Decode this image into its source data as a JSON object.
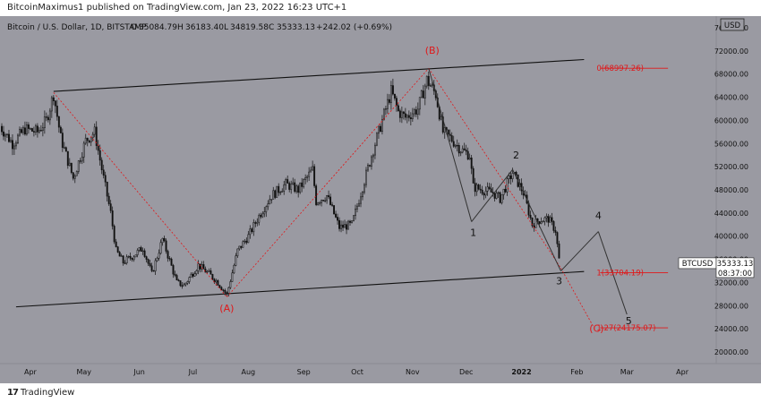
{
  "header": {
    "published_text": "BitcoinMaximus1 published on TradingView.com, Jan 23, 2022 16:23 UTC+1"
  },
  "footer": {
    "logo_mark": "17",
    "brand": "TradingView"
  },
  "colors": {
    "plot_bg": "#9a9aa2",
    "axis_bg": "#9a9aa2",
    "candle": "#111111",
    "wave_line": "#333333",
    "red": "#e0181a",
    "price_box": "#ffffff"
  },
  "chart_data": {
    "type": "candlestick",
    "symbol_line": {
      "name": "Bitcoin / U.S. Dollar, 1D, BITSTAMP",
      "o_label": "O",
      "o_value": "35084.79",
      "h_label": "H",
      "h_value": "36183.40",
      "l_label": "L",
      "l_value": "34819.58",
      "c_label": "C",
      "c_value": "35333.13",
      "change": "+242.02 (+0.69%)"
    },
    "currency": "USD",
    "price_axis_labels": [
      "76000.00",
      "72000.00",
      "68000.00",
      "64000.00",
      "60000.00",
      "56000.00",
      "52000.00",
      "48000.00",
      "44000.00",
      "40000.00",
      "36000.00",
      "32000.00",
      "28000.00",
      "24000.00",
      "20000.00"
    ],
    "price_ticks": [
      76000,
      72000,
      68000,
      64000,
      60000,
      56000,
      52000,
      48000,
      44000,
      40000,
      36000,
      32000,
      28000,
      24000,
      20000
    ],
    "ylim": [
      18000,
      78000
    ],
    "time_axis_labels": [
      "Apr",
      "May",
      "Jun",
      "Jul",
      "Aug",
      "Sep",
      "Oct",
      "Nov",
      "Dec",
      "2022",
      "Feb",
      "Mar",
      "Apr"
    ],
    "time_ticks": [
      "2021-04-01",
      "2021-05-01",
      "2021-06-01",
      "2021-07-01",
      "2021-08-01",
      "2021-09-01",
      "2021-10-01",
      "2021-11-01",
      "2021-12-01",
      "2022-01-01",
      "2022-02-01",
      "2022-03-01",
      "2022-04-01"
    ],
    "xlim": [
      "2021-03-15",
      "2022-04-20"
    ],
    "last_price": {
      "symbol": "BTCUSD",
      "price": "35333.13",
      "countdown": "08:37:00",
      "value": 35333.13
    },
    "price_path": [
      [
        "2021-03-15",
        59000
      ],
      [
        "2021-03-22",
        56000
      ],
      [
        "2021-03-29",
        58500
      ],
      [
        "2021-04-05",
        58000
      ],
      [
        "2021-04-10",
        60000
      ],
      [
        "2021-04-14",
        64500
      ],
      [
        "2021-04-18",
        57000
      ],
      [
        "2021-04-25",
        50000
      ],
      [
        "2021-05-02",
        56500
      ],
      [
        "2021-05-07",
        58000
      ],
      [
        "2021-05-12",
        50000
      ],
      [
        "2021-05-16",
        44000
      ],
      [
        "2021-05-19",
        37500
      ],
      [
        "2021-05-23",
        35500
      ],
      [
        "2021-05-28",
        36500
      ],
      [
        "2021-06-03",
        38000
      ],
      [
        "2021-06-08",
        33500
      ],
      [
        "2021-06-14",
        39500
      ],
      [
        "2021-06-22",
        32000
      ],
      [
        "2021-06-26",
        31500
      ],
      [
        "2021-07-04",
        35000
      ],
      [
        "2021-07-10",
        33500
      ],
      [
        "2021-07-15",
        32000
      ],
      [
        "2021-07-20",
        29900
      ],
      [
        "2021-07-26",
        37500
      ],
      [
        "2021-08-01",
        40000
      ],
      [
        "2021-08-07",
        43500
      ],
      [
        "2021-08-14",
        47000
      ],
      [
        "2021-08-22",
        49000
      ],
      [
        "2021-08-29",
        48000
      ],
      [
        "2021-09-06",
        51500
      ],
      [
        "2021-09-08",
        46000
      ],
      [
        "2021-09-14",
        47000
      ],
      [
        "2021-09-21",
        41500
      ],
      [
        "2021-09-28",
        42000
      ],
      [
        "2021-10-04",
        48500
      ],
      [
        "2021-10-10",
        55000
      ],
      [
        "2021-10-16",
        61000
      ],
      [
        "2021-10-20",
        65000
      ],
      [
        "2021-10-24",
        61500
      ],
      [
        "2021-10-28",
        60500
      ],
      [
        "2021-11-04",
        62000
      ],
      [
        "2021-11-09",
        67000
      ],
      [
        "2021-11-14",
        64500
      ],
      [
        "2021-11-18",
        58000
      ],
      [
        "2021-11-22",
        57000
      ],
      [
        "2021-11-28",
        55000
      ],
      [
        "2021-12-03",
        54000
      ],
      [
        "2021-12-05",
        48500
      ],
      [
        "2021-12-10",
        48000
      ],
      [
        "2021-12-16",
        47500
      ],
      [
        "2021-12-20",
        46500
      ],
      [
        "2021-12-27",
        51000
      ],
      [
        "2022-01-02",
        47500
      ],
      [
        "2022-01-07",
        42000
      ],
      [
        "2022-01-11",
        42800
      ],
      [
        "2022-01-16",
        43000
      ],
      [
        "2022-01-20",
        41000
      ],
      [
        "2022-01-22",
        36000
      ],
      [
        "2022-01-23",
        35333
      ]
    ],
    "channel_lines": [
      {
        "from": [
          "2021-04-14",
          65000
        ],
        "to": [
          "2022-02-05",
          70500
        ]
      },
      {
        "from": [
          "2021-03-24",
          27800
        ],
        "to": [
          "2022-02-05",
          33900
        ]
      }
    ],
    "red_wave_lines": [
      {
        "from": [
          "2021-04-14",
          64800
        ],
        "to": [
          "2021-07-20",
          29500
        ]
      },
      {
        "from": [
          "2021-07-20",
          29500
        ],
        "to": [
          "2021-11-10",
          69000
        ]
      },
      {
        "from": [
          "2021-11-10",
          69000
        ],
        "to": [
          "2022-01-23",
          34500
        ]
      },
      {
        "from": [
          "2022-01-23",
          34500
        ],
        "to": [
          "2022-02-10",
          24500
        ]
      }
    ],
    "dark_wave_lines": [
      {
        "from": [
          "2021-11-10",
          69000
        ],
        "to": [
          "2021-12-04",
          42500
        ]
      },
      {
        "from": [
          "2021-12-04",
          42500
        ],
        "to": [
          "2021-12-27",
          51500
        ]
      },
      {
        "from": [
          "2021-12-27",
          51500
        ],
        "to": [
          "2022-01-23",
          34000
        ]
      },
      {
        "from": [
          "2022-01-23",
          34000
        ],
        "to": [
          "2022-02-13",
          40800
        ]
      },
      {
        "from": [
          "2022-02-13",
          40800
        ],
        "to": [
          "2022-03-01",
          26500
        ]
      }
    ],
    "wave_labels": [
      {
        "text": "(A)",
        "date": "2021-07-20",
        "price": 27000,
        "color": "red"
      },
      {
        "text": "(B)",
        "date": "2021-11-12",
        "price": 71500,
        "color": "red"
      },
      {
        "text": "(C)",
        "date": "2022-02-12",
        "price": 23500,
        "color": "red"
      },
      {
        "text": "1",
        "date": "2021-12-05",
        "price": 40000,
        "color": "dark"
      },
      {
        "text": "2",
        "date": "2021-12-29",
        "price": 53400,
        "color": "dark"
      },
      {
        "text": "3",
        "date": "2022-01-22",
        "price": 31700,
        "color": "dark"
      },
      {
        "text": "4",
        "date": "2022-02-13",
        "price": 43000,
        "color": "dark"
      },
      {
        "text": "5",
        "date": "2022-03-02",
        "price": 24800,
        "color": "dark"
      }
    ],
    "fib_levels": [
      {
        "label": "0(68997.26)",
        "price": 68997.26,
        "date_from": "2022-02-13",
        "date_to": "2022-03-24"
      },
      {
        "label": "1(33704.19)",
        "price": 33704.19,
        "date_from": "2022-02-13",
        "date_to": "2022-03-24"
      },
      {
        "label": "1.27(24175.07)",
        "price": 24175.07,
        "date_from": "2022-02-13",
        "date_to": "2022-03-24"
      }
    ]
  }
}
